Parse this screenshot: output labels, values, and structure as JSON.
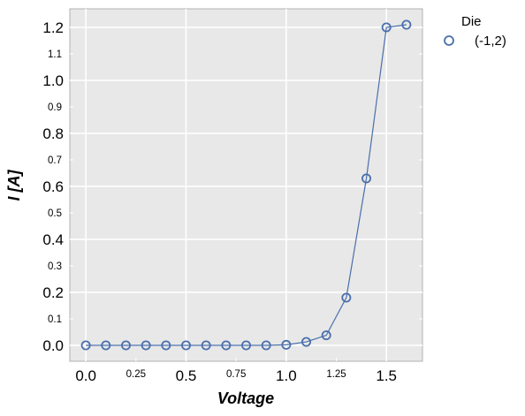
{
  "chart_data": {
    "type": "line",
    "xlabel": "Voltage",
    "ylabel": "I [A]",
    "xlim": [
      -0.08,
      1.68
    ],
    "ylim": [
      -0.06,
      1.27
    ],
    "x_major_ticks": [
      {
        "value": 0.0,
        "label": "0.0"
      },
      {
        "value": 0.5,
        "label": "0.5"
      },
      {
        "value": 1.0,
        "label": "1.0"
      },
      {
        "value": 1.5,
        "label": "1.5"
      }
    ],
    "x_minor_ticks": [
      {
        "value": 0.25,
        "label": "0.25"
      },
      {
        "value": 0.75,
        "label": "0.75"
      },
      {
        "value": 1.25,
        "label": "1.25"
      }
    ],
    "y_major_ticks": [
      {
        "value": 0.0,
        "label": "0.0"
      },
      {
        "value": 0.2,
        "label": "0.2"
      },
      {
        "value": 0.4,
        "label": "0.4"
      },
      {
        "value": 0.6,
        "label": "0.6"
      },
      {
        "value": 0.8,
        "label": "0.8"
      },
      {
        "value": 1.0,
        "label": "1.0"
      },
      {
        "value": 1.2,
        "label": "1.2"
      }
    ],
    "y_minor_ticks": [
      {
        "value": 0.1,
        "label": "0.1"
      },
      {
        "value": 0.3,
        "label": "0.3"
      },
      {
        "value": 0.5,
        "label": "0.5"
      },
      {
        "value": 0.7,
        "label": "0.7"
      },
      {
        "value": 0.9,
        "label": "0.9"
      },
      {
        "value": 1.1,
        "label": "1.1"
      }
    ],
    "grid": true,
    "legend": {
      "title": "Die",
      "placement": "outside-top-right"
    },
    "series": [
      {
        "name": "(-1,2)",
        "color": "#4a6fac",
        "marker": "open-circle",
        "x": [
          0.0,
          0.1,
          0.2,
          0.3,
          0.4,
          0.5,
          0.6,
          0.7,
          0.8,
          0.9,
          1.0,
          1.1,
          1.2,
          1.3,
          1.4,
          1.5,
          1.6
        ],
        "y": [
          0.0,
          0.0,
          0.0,
          0.0,
          0.0,
          0.0,
          0.0,
          0.0,
          0.0,
          0.0,
          0.002,
          0.013,
          0.038,
          0.18,
          0.63,
          1.2,
          1.21
        ]
      }
    ]
  },
  "colors": {
    "plot_background": "#e8e8e8",
    "grid": "#ffffff",
    "frame": "#b0b0b0",
    "series": "#4a6fac"
  }
}
